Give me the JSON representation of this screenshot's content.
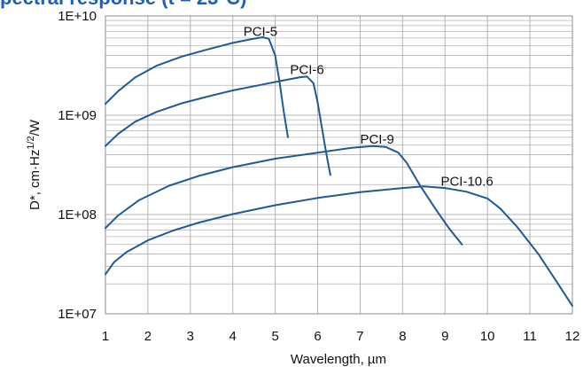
{
  "page_heading": "pectral response (t = 23°C)",
  "chart_data": {
    "type": "line",
    "title": "",
    "xlabel": "Wavelength, µm",
    "ylabel": "D*, cm·Hz",
    "ylabel_superscript": "1/2",
    "ylabel_suffix": "/W",
    "x_scale": "linear",
    "y_scale": "log",
    "xlim": [
      1,
      12
    ],
    "ylim": [
      10000000,
      10000000000
    ],
    "x_ticks": [
      1,
      2,
      3,
      4,
      5,
      6,
      7,
      8,
      9,
      10,
      11,
      12
    ],
    "x_tick_labels": [
      "1",
      "2",
      "3",
      "4",
      "5",
      "6",
      "7",
      "8",
      "9",
      "10",
      "11",
      "12"
    ],
    "y_ticks": [
      10000000,
      100000000,
      1000000000,
      10000000000
    ],
    "y_tick_labels": [
      "1E+07",
      "1E+08",
      "1E+09",
      "1E+10"
    ],
    "grid": {
      "major": true,
      "minor_log": true
    },
    "line_color": "#1f5a96",
    "grid_color": "#b3b3b3",
    "series": [
      {
        "name": "PCI-5",
        "x": [
          1.0,
          1.3,
          1.7,
          2.2,
          2.8,
          3.4,
          4.0,
          4.4,
          4.7,
          4.85,
          5.0,
          5.1,
          5.2,
          5.3
        ],
        "y": [
          1300000000,
          1750000000,
          2400000000,
          3150000000,
          3900000000,
          4600000000,
          5350000000,
          5800000000,
          6100000000,
          5900000000,
          4000000000,
          2200000000,
          1100000000,
          600000000
        ]
      },
      {
        "name": "PCI-6",
        "x": [
          1.0,
          1.3,
          1.7,
          2.2,
          2.8,
          3.4,
          4.0,
          4.6,
          5.2,
          5.6,
          5.75,
          5.9,
          6.0,
          6.1,
          6.2,
          6.3
        ],
        "y": [
          490000000,
          650000000,
          860000000,
          1080000000,
          1320000000,
          1540000000,
          1780000000,
          2000000000,
          2250000000,
          2420000000,
          2450000000,
          2100000000,
          1350000000,
          750000000,
          420000000,
          250000000
        ]
      },
      {
        "name": "PCI-9",
        "x": [
          1.0,
          1.3,
          1.8,
          2.5,
          3.2,
          4.0,
          5.0,
          6.0,
          6.8,
          7.3,
          7.6,
          7.9,
          8.1,
          8.4,
          8.8,
          9.1,
          9.4
        ],
        "y": [
          73000000,
          98000000,
          140000000,
          195000000,
          245000000,
          300000000,
          365000000,
          420000000,
          470000000,
          490000000,
          480000000,
          420000000,
          330000000,
          200000000,
          110000000,
          72000000,
          50000000
        ]
      },
      {
        "name": "PCI-10.6",
        "x": [
          1.0,
          1.2,
          1.5,
          2.0,
          2.6,
          3.2,
          4.0,
          5.0,
          6.0,
          7.0,
          8.0,
          8.5,
          9.0,
          9.5,
          10.0,
          10.3,
          10.7,
          11.2,
          11.6,
          12.0
        ],
        "y": [
          25000000,
          33000000,
          42000000,
          55000000,
          69000000,
          83000000,
          101000000,
          124000000,
          147000000,
          168000000,
          185000000,
          192000000,
          185000000,
          170000000,
          145000000,
          115000000,
          75000000,
          40000000,
          22000000,
          12000000
        ]
      }
    ],
    "series_label_anchors": [
      {
        "name": "PCI-5",
        "x": 4.25,
        "y": 6300000000
      },
      {
        "name": "PCI-6",
        "x": 5.35,
        "y": 2600000000
      },
      {
        "name": "PCI-9",
        "x": 7.0,
        "y": 520000000
      },
      {
        "name": "PCI-10.6",
        "x": 8.9,
        "y": 195000000
      }
    ]
  }
}
